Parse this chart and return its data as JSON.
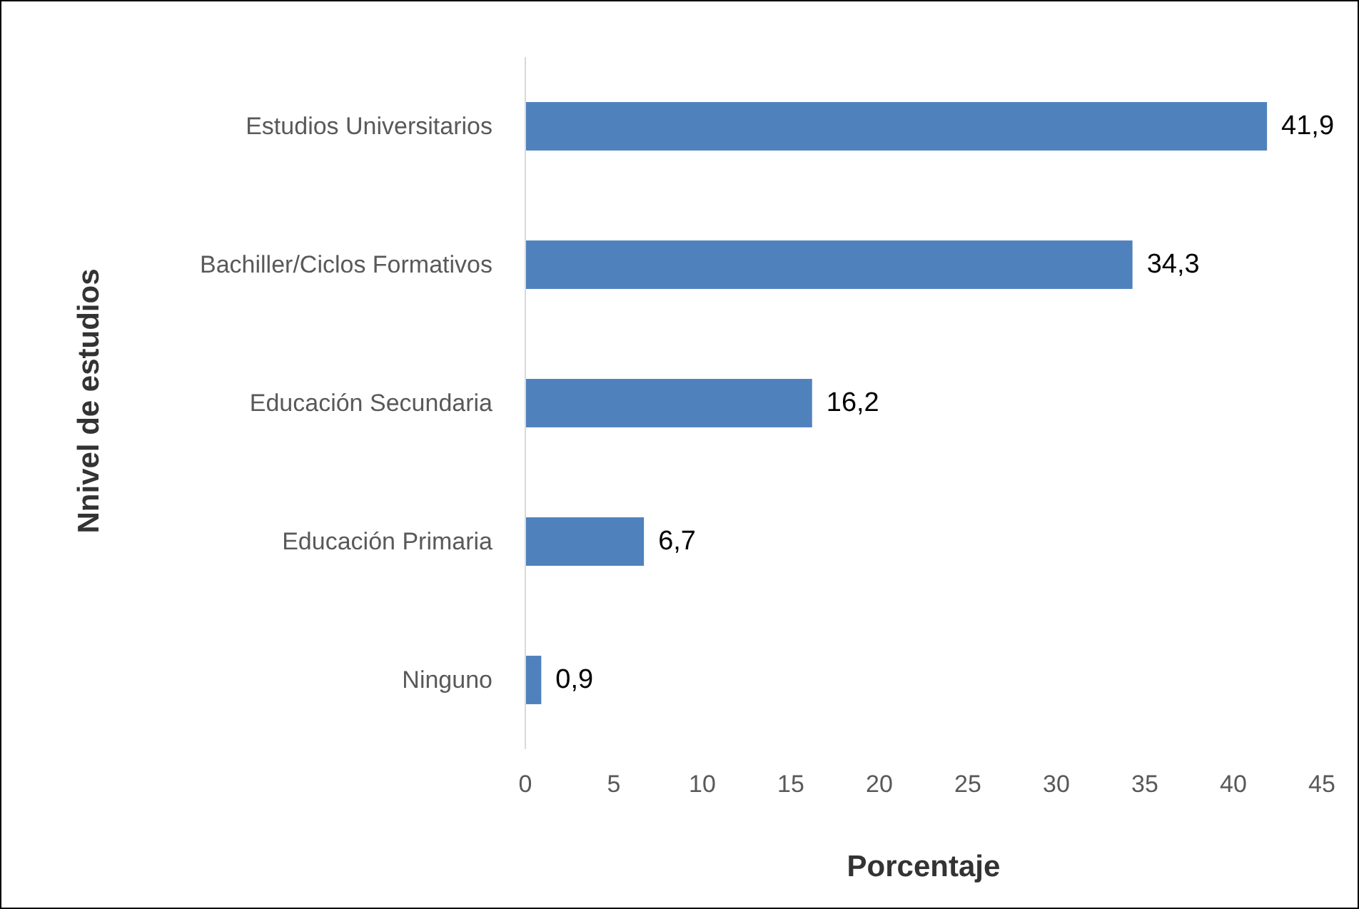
{
  "chart_data": {
    "type": "bar",
    "orientation": "horizontal",
    "xlabel": "Porcentaje",
    "ylabel": "Nnivel de estudios",
    "categories": [
      "Estudios Universitarios",
      "Bachiller/Ciclos Formativos",
      "Educación Secundaria",
      "Educación Primaria",
      "Ninguno"
    ],
    "values": [
      41.9,
      34.3,
      16.2,
      6.7,
      0.9
    ],
    "value_labels": [
      "41,9",
      "34,3",
      "16,2",
      "6,7",
      "0,9"
    ],
    "color": "#4f81bd",
    "xlim": [
      0,
      45
    ],
    "xticks": [
      0,
      5,
      10,
      15,
      20,
      25,
      30,
      35,
      40,
      45
    ]
  }
}
